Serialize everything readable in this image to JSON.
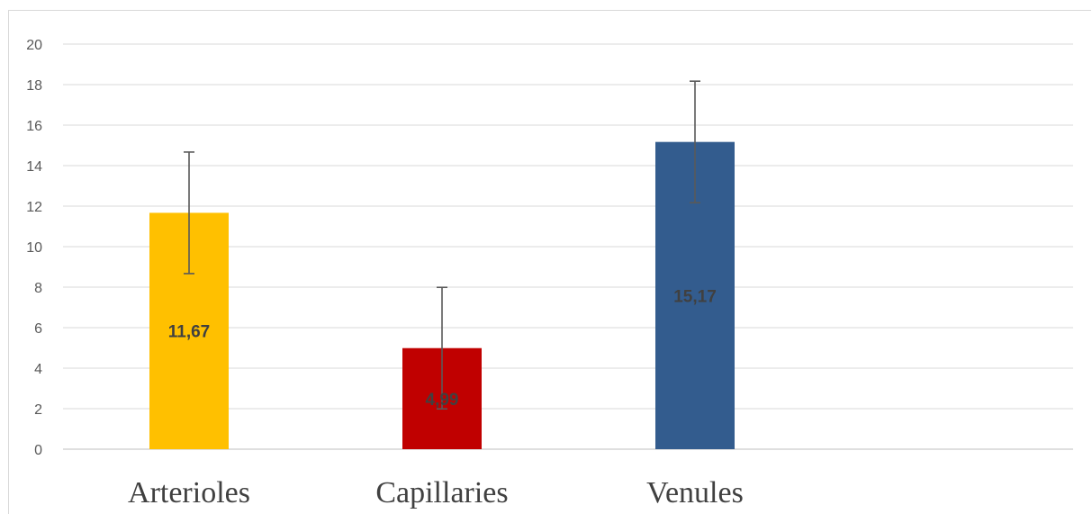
{
  "chart_data": {
    "type": "bar",
    "title": "",
    "xlabel": "",
    "ylabel": "",
    "ylim": [
      0,
      20
    ],
    "yticks": [
      0,
      2,
      4,
      6,
      8,
      10,
      12,
      14,
      16,
      18,
      20
    ],
    "ytick_labels": [
      "0",
      "2",
      "4",
      "6",
      "8",
      "10",
      "12",
      "14",
      "16",
      "18",
      "20"
    ],
    "grid": "horizontal",
    "legend": "none",
    "categories": [
      "Arterioles",
      "Capillaries",
      "Venules"
    ],
    "values": [
      11.67,
      4.99,
      15.17
    ],
    "data_labels": [
      "11,67",
      "4,99",
      "15,17"
    ],
    "error": [
      3,
      3,
      3
    ],
    "colors": [
      "#FFC000",
      "#C00000",
      "#335C8E"
    ]
  }
}
